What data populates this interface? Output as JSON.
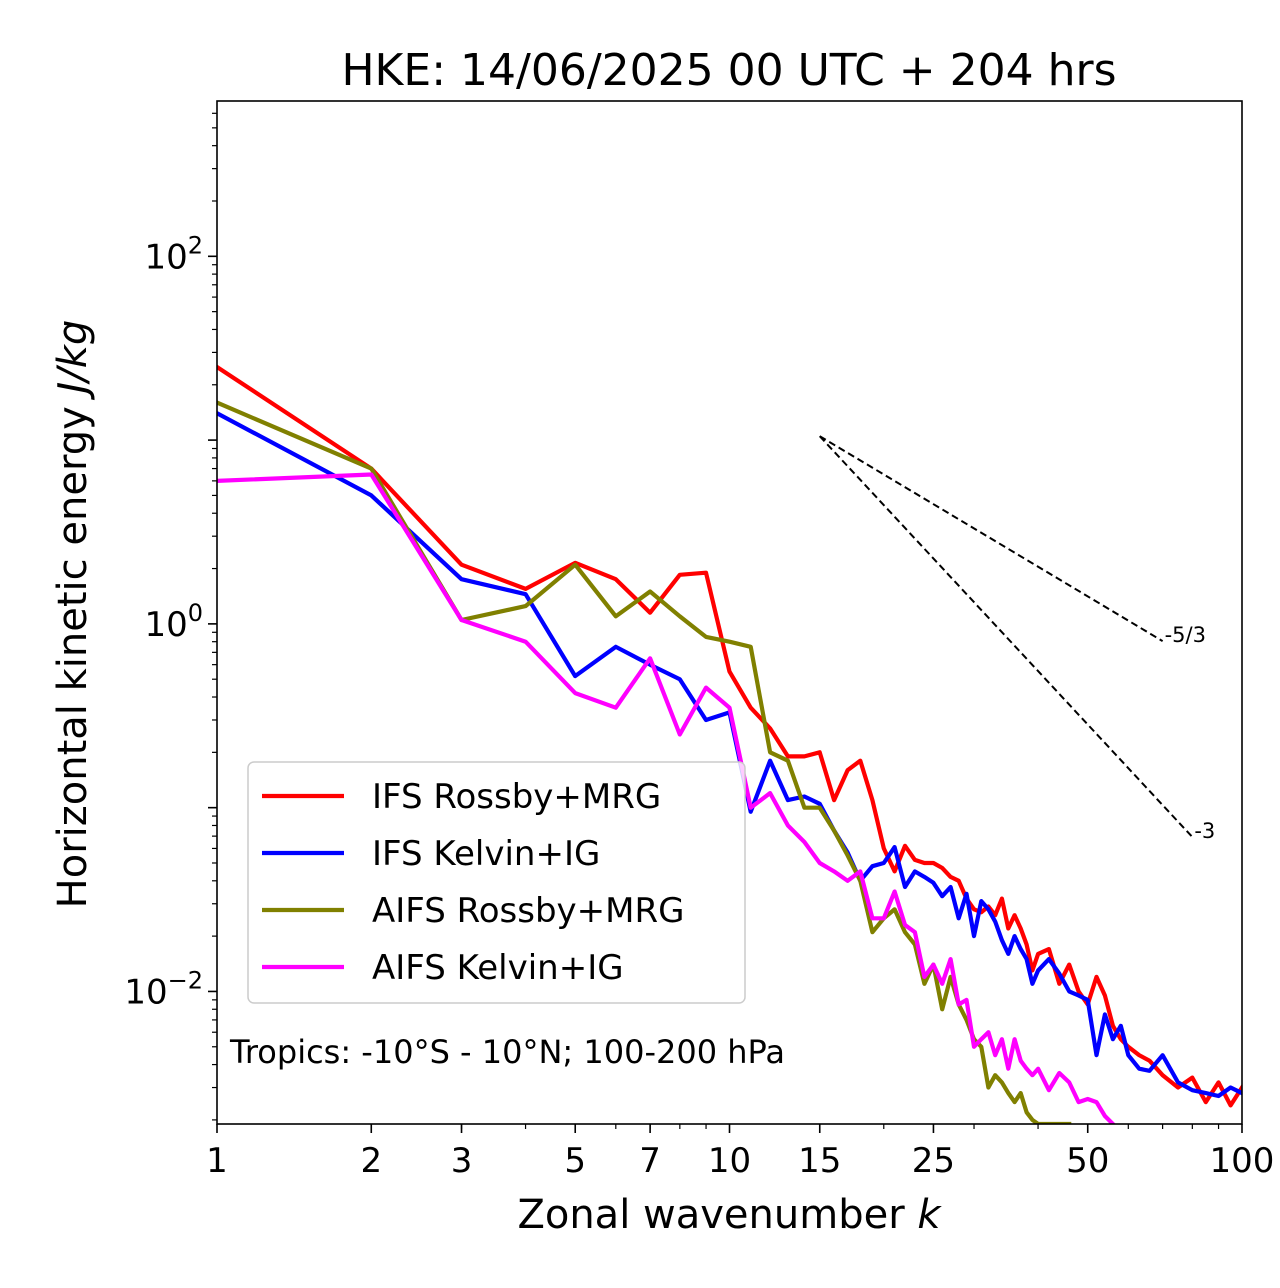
{
  "chart_data": {
    "type": "line",
    "title": "HKE: 14/06/2025 00 UTC + 204 hrs",
    "xlabel": "Zonal wavenumber",
    "xlabel_italic": "k",
    "ylabel": "Horizontal kinetic energy",
    "ylabel_italic": "J/kg",
    "xscale": "log",
    "yscale": "log",
    "xlim": [
      1,
      100
    ],
    "ylim": [
      0.0019,
      700
    ],
    "xticks": [
      1,
      2,
      3,
      5,
      7,
      10,
      15,
      25,
      50,
      100
    ],
    "xtick_labels": [
      "1",
      "2",
      "3",
      "5",
      "7",
      "10",
      "15",
      "25",
      "50",
      "100"
    ],
    "yticks": [
      {
        "value": 0.01,
        "base": "10",
        "exp": "−2"
      },
      {
        "value": 1,
        "base": "10",
        "exp": "0"
      },
      {
        "value": 100,
        "base": "10",
        "exp": "2"
      }
    ],
    "annotation": "Tropics: -10°S - 10°N; 100-200 hPa",
    "legend_position": "lower-left",
    "grid": false,
    "reference_lines": [
      {
        "label": "-5/3",
        "slope": -1.6667,
        "x": [
          15,
          70
        ],
        "y0": 10.5,
        "style": "dashed",
        "color": "#000000"
      },
      {
        "label": "-3",
        "slope": -3,
        "x": [
          15,
          80
        ],
        "y0": 10.5,
        "style": "dashed",
        "color": "#000000"
      }
    ],
    "series": [
      {
        "name": "IFS Rossby+MRG",
        "color": "#ff0000",
        "x": [
          1,
          2,
          3,
          4,
          5,
          6,
          7,
          8,
          9,
          10,
          11,
          12,
          13,
          14,
          15,
          16,
          17,
          18,
          19,
          20,
          21,
          22,
          23,
          24,
          25,
          26,
          27,
          28,
          29,
          30,
          31,
          32,
          33,
          34,
          35,
          36,
          37,
          38,
          39,
          40,
          42,
          44,
          46,
          48,
          50,
          52,
          54,
          56,
          58,
          60,
          63,
          66,
          70,
          75,
          80,
          85,
          90,
          95,
          100
        ],
        "y": [
          25,
          7,
          2.1,
          1.55,
          2.15,
          1.75,
          1.15,
          1.85,
          1.9,
          0.55,
          0.35,
          0.27,
          0.19,
          0.19,
          0.2,
          0.11,
          0.16,
          0.18,
          0.11,
          0.06,
          0.045,
          0.062,
          0.052,
          0.05,
          0.05,
          0.047,
          0.042,
          0.04,
          0.032,
          0.028,
          0.027,
          0.029,
          0.026,
          0.032,
          0.022,
          0.026,
          0.022,
          0.018,
          0.013,
          0.016,
          0.017,
          0.011,
          0.014,
          0.01,
          0.0085,
          0.012,
          0.0095,
          0.0065,
          0.0055,
          0.005,
          0.0045,
          0.0042,
          0.0035,
          0.003,
          0.0034,
          0.0025,
          0.0032,
          0.0024,
          0.003
        ]
      },
      {
        "name": "IFS Kelvin+IG",
        "color": "#0000ff",
        "x": [
          1,
          2,
          3,
          4,
          5,
          6,
          7,
          8,
          9,
          10,
          11,
          12,
          13,
          14,
          15,
          16,
          17,
          18,
          19,
          20,
          21,
          22,
          23,
          24,
          25,
          26,
          27,
          28,
          29,
          30,
          31,
          32,
          33,
          34,
          35,
          36,
          37,
          38,
          39,
          40,
          42,
          44,
          46,
          48,
          50,
          52,
          54,
          56,
          58,
          60,
          63,
          66,
          70,
          75,
          80,
          85,
          90,
          95,
          100
        ],
        "y": [
          14,
          5,
          1.75,
          1.45,
          0.52,
          0.75,
          0.6,
          0.5,
          0.3,
          0.33,
          0.095,
          0.18,
          0.11,
          0.115,
          0.105,
          0.075,
          0.057,
          0.04,
          0.048,
          0.05,
          0.061,
          0.037,
          0.045,
          0.042,
          0.039,
          0.033,
          0.037,
          0.025,
          0.034,
          0.02,
          0.031,
          0.028,
          0.024,
          0.019,
          0.016,
          0.02,
          0.017,
          0.015,
          0.011,
          0.013,
          0.015,
          0.0125,
          0.01,
          0.0095,
          0.009,
          0.0045,
          0.0075,
          0.0055,
          0.0065,
          0.0045,
          0.0038,
          0.0037,
          0.0045,
          0.0032,
          0.0029,
          0.0028,
          0.0027,
          0.003,
          0.0028
        ]
      },
      {
        "name": "AIFS Rossby+MRG",
        "color": "#808000",
        "x": [
          1,
          2,
          3,
          4,
          5,
          6,
          7,
          8,
          9,
          10,
          11,
          12,
          13,
          14,
          15,
          16,
          17,
          18,
          19,
          20,
          21,
          22,
          23,
          24,
          25,
          26,
          27,
          28,
          29,
          30,
          31,
          32,
          33,
          34,
          35,
          36,
          37,
          38,
          39,
          40,
          41,
          42,
          43,
          44,
          45,
          46
        ],
        "y": [
          16,
          7,
          1.05,
          1.25,
          2.1,
          1.1,
          1.5,
          1.1,
          0.85,
          0.8,
          0.75,
          0.2,
          0.18,
          0.1,
          0.1,
          0.075,
          0.055,
          0.04,
          0.021,
          0.025,
          0.028,
          0.021,
          0.018,
          0.011,
          0.014,
          0.008,
          0.012,
          0.0085,
          0.007,
          0.0055,
          0.005,
          0.003,
          0.0035,
          0.0032,
          0.0028,
          0.0025,
          0.0028,
          0.0022,
          0.002,
          0.0019,
          0.0019,
          0.0019,
          0.0019,
          0.0019,
          0.0019,
          0.0019
        ]
      },
      {
        "name": "AIFS Kelvin+IG",
        "color": "#ff00ff",
        "x": [
          1,
          2,
          3,
          4,
          5,
          6,
          7,
          8,
          9,
          10,
          11,
          12,
          13,
          14,
          15,
          16,
          17,
          18,
          19,
          20,
          21,
          22,
          23,
          24,
          25,
          26,
          27,
          28,
          29,
          30,
          31,
          32,
          33,
          34,
          35,
          36,
          37,
          38,
          39,
          40,
          42,
          44,
          46,
          48,
          50,
          52,
          54,
          56
        ],
        "y": [
          6,
          6.5,
          1.05,
          0.8,
          0.42,
          0.35,
          0.65,
          0.25,
          0.45,
          0.35,
          0.1,
          0.12,
          0.08,
          0.065,
          0.05,
          0.045,
          0.04,
          0.045,
          0.025,
          0.025,
          0.035,
          0.023,
          0.021,
          0.012,
          0.014,
          0.011,
          0.015,
          0.0085,
          0.009,
          0.005,
          0.0055,
          0.006,
          0.0045,
          0.0055,
          0.0038,
          0.0055,
          0.0042,
          0.0038,
          0.0035,
          0.0038,
          0.0029,
          0.0036,
          0.0032,
          0.0025,
          0.0026,
          0.0025,
          0.0021,
          0.0019
        ]
      }
    ]
  }
}
